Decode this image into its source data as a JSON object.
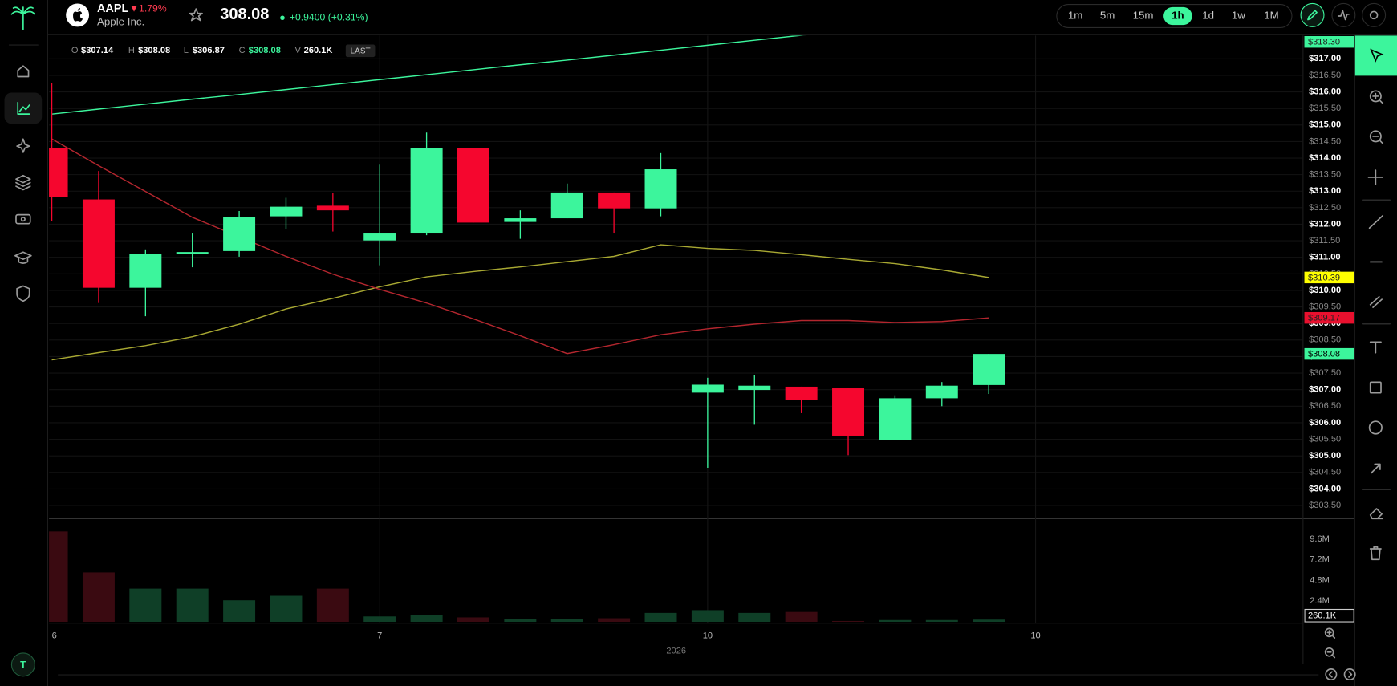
{
  "header": {
    "symbol": "AAPL",
    "change_pct": "▼1.79%",
    "company": "Apple Inc.",
    "price": "308.08",
    "change": "+0.9400 (+0.31%)",
    "avatar": "T"
  },
  "timeframes": {
    "items": [
      "1m",
      "5m",
      "15m",
      "1h",
      "1d",
      "1w",
      "1M"
    ],
    "active": 3
  },
  "legend": {
    "o_key": "O",
    "o": "$307.14",
    "h_key": "H",
    "h": "$308.08",
    "l_key": "L",
    "l": "$306.87",
    "c_key": "C",
    "c": "$308.08",
    "v_key": "V",
    "v": "260.1K",
    "mode": "LAST"
  },
  "chart": {
    "type": "candlestick",
    "x": [
      0,
      1,
      2,
      3,
      4,
      5,
      6,
      7,
      8,
      9,
      10,
      11,
      12,
      13,
      14,
      15,
      16,
      17,
      18,
      19,
      20
    ],
    "xlim": [
      -0.06,
      26.7
    ],
    "xticks": [
      {
        "value": 0,
        "label": "6"
      },
      {
        "value": 7,
        "label": "7"
      },
      {
        "value": 14,
        "label": "10"
      },
      {
        "value": 21,
        "label": "10"
      }
    ],
    "x_year": "2026",
    "ylim": [
      303.16,
      317.7
    ],
    "yticks": [
      {
        "value": 303.5,
        "label": "$303.50"
      },
      {
        "value": 304,
        "label": "$304.00"
      },
      {
        "value": 304.5,
        "label": "$304.50"
      },
      {
        "value": 305,
        "label": "$305.00"
      },
      {
        "value": 305.5,
        "label": "$305.50"
      },
      {
        "value": 306,
        "label": "$306.00"
      },
      {
        "value": 306.5,
        "label": "$306.50"
      },
      {
        "value": 307,
        "label": "$307.00"
      },
      {
        "value": 307.5,
        "label": "$307.50"
      },
      {
        "value": 308,
        "label": "$308.00"
      },
      {
        "value": 308.5,
        "label": "$308.50"
      },
      {
        "value": 309,
        "label": "$309.00"
      },
      {
        "value": 309.5,
        "label": "$309.50"
      },
      {
        "value": 310,
        "label": "$310.00"
      },
      {
        "value": 310.5,
        "label": "$310.50"
      },
      {
        "value": 311,
        "label": "$311.00"
      },
      {
        "value": 311.5,
        "label": "$311.50"
      },
      {
        "value": 312,
        "label": "$312.00"
      },
      {
        "value": 312.5,
        "label": "$312.50"
      },
      {
        "value": 313,
        "label": "$313.00"
      },
      {
        "value": 313.5,
        "label": "$313.50"
      },
      {
        "value": 314,
        "label": "$314.00"
      },
      {
        "value": 314.5,
        "label": "$314.50"
      },
      {
        "value": 315,
        "label": "$315.00"
      },
      {
        "value": 315.5,
        "label": "$315.50"
      },
      {
        "value": 316,
        "label": "$316.00"
      },
      {
        "value": 316.5,
        "label": "$316.50"
      },
      {
        "value": 317,
        "label": "$317.00"
      }
    ],
    "up_color": "#3cf59c",
    "down_color": "#f5062e",
    "open": [
      314.31,
      312.75,
      310.08,
      311.11,
      311.19,
      312.24,
      312.56,
      311.51,
      311.72,
      314.31,
      312.07,
      312.18,
      312.96,
      312.48,
      306.91,
      306.99,
      307.09,
      307.04,
      305.48,
      306.74,
      307.14
    ],
    "high": [
      316.27,
      313.61,
      311.24,
      311.72,
      312.4,
      312.8,
      312.94,
      313.8,
      314.77,
      314.31,
      312.42,
      313.23,
      312.96,
      314.15,
      307.36,
      307.44,
      307.09,
      307.04,
      306.83,
      307.23,
      308.08
    ],
    "low": [
      312.1,
      309.62,
      309.22,
      310.7,
      311.02,
      311.86,
      311.78,
      310.76,
      311.67,
      312.05,
      311.56,
      312.18,
      311.72,
      312.24,
      304.64,
      305.94,
      306.29,
      305.02,
      305.48,
      306.5,
      306.87
    ],
    "close": [
      312.83,
      310.08,
      311.11,
      311.16,
      312.21,
      312.53,
      312.42,
      311.72,
      314.31,
      312.05,
      312.18,
      312.96,
      312.48,
      313.66,
      307.15,
      307.12,
      306.69,
      305.61,
      306.74,
      307.12,
      308.08
    ],
    "last_label": "$308.08",
    "indicators": [
      {
        "color": "#3cf59c",
        "values": [
          315.33,
          315.48,
          315.63,
          315.78,
          315.92,
          316.07,
          316.22,
          316.37,
          316.52,
          316.67,
          316.82,
          316.96,
          317.11,
          317.26,
          317.41,
          317.56,
          317.71,
          317.86,
          318.0,
          318.15,
          318.3
        ],
        "last_label": "$318.30",
        "tag_color": "#3cf59c"
      },
      {
        "color": "#a8a832",
        "values": [
          307.9,
          308.12,
          308.33,
          308.6,
          308.98,
          309.44,
          309.76,
          310.11,
          310.41,
          310.57,
          310.71,
          310.87,
          311.03,
          311.38,
          311.27,
          311.21,
          311.08,
          310.94,
          310.81,
          310.62,
          310.39
        ],
        "last_label": "$310.39",
        "tag_color": "#ffff00"
      },
      {
        "color": "#b3262e",
        "values": [
          314.58,
          313.77,
          312.99,
          312.21,
          311.62,
          311.03,
          310.49,
          310.03,
          309.62,
          309.14,
          308.63,
          308.09,
          308.36,
          308.66,
          308.84,
          308.98,
          309.09,
          309.09,
          309.03,
          309.06,
          309.17
        ],
        "last_label": "$309.17",
        "tag_color": "#e8102e"
      }
    ],
    "volume": {
      "values": [
        10.5,
        5.74,
        3.86,
        3.86,
        2.5,
        3.03,
        3.86,
        0.63,
        0.84,
        0.52,
        0.31,
        0.31,
        0.42,
        1.04,
        1.36,
        1.04,
        1.15,
        0.1,
        0.21,
        0.21,
        0.2601
      ],
      "last_label": "260.1K",
      "ylim": [
        0,
        12
      ],
      "yticks": [
        {
          "value": 2.4,
          "label": "2.4M"
        },
        {
          "value": 4.8,
          "label": "4.8M"
        },
        {
          "value": 7.2,
          "label": "7.2M"
        },
        {
          "value": 9.6,
          "label": "9.6M"
        }
      ],
      "up_color": "#0f3f27",
      "down_color": "#3a0a11"
    }
  }
}
